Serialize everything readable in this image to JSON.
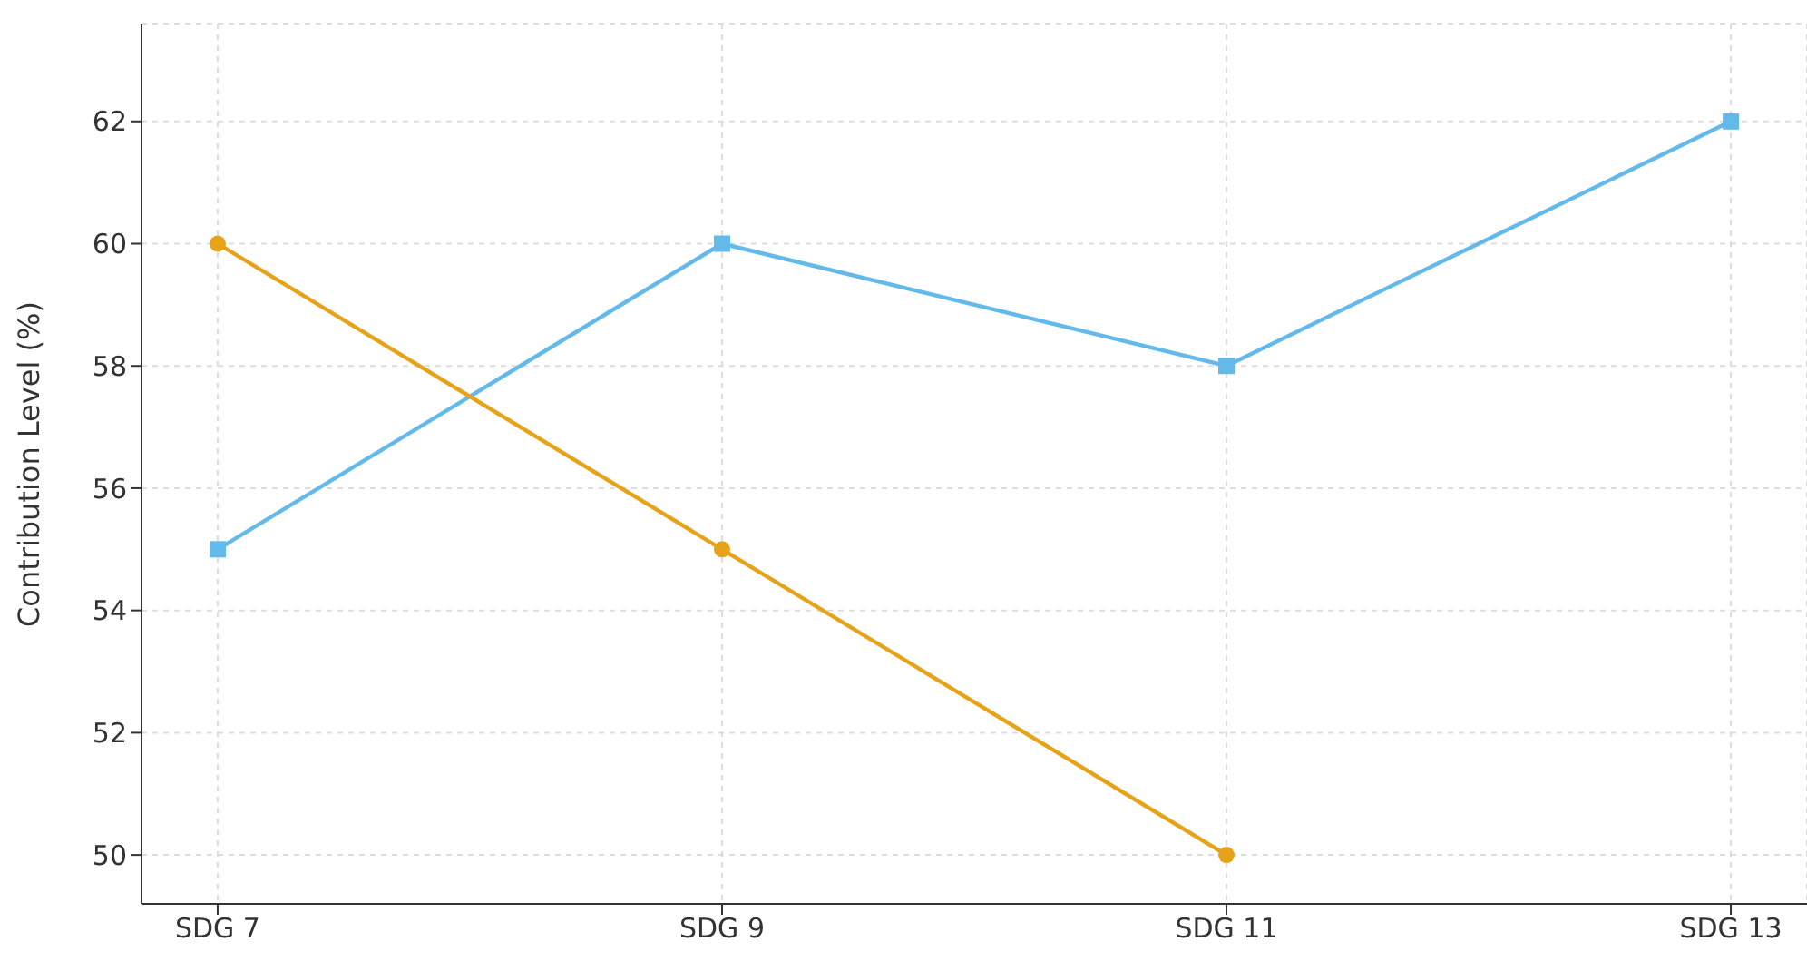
{
  "chart_data": {
    "type": "line",
    "ylabel": "Contribution Level (%)",
    "categories": [
      "SDG 7",
      "SDG 9",
      "SDG 11",
      "SDG 13"
    ],
    "series": [
      {
        "color": "#63b9e9",
        "values": [
          55,
          60,
          58,
          62
        ],
        "marker": "square"
      },
      {
        "color": "#e6a31a",
        "values": [
          60,
          55,
          50,
          null
        ],
        "marker": "circle"
      }
    ],
    "ylim": [
      49.2,
      63.6
    ],
    "yticks": [
      50,
      52,
      54,
      56,
      58,
      60,
      62
    ],
    "grid": true,
    "legend": false,
    "line_style": "solid"
  }
}
